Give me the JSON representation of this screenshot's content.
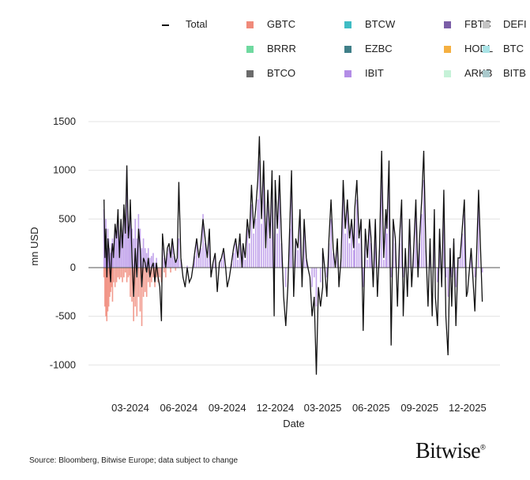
{
  "chart_data": {
    "type": "bar+line",
    "xlabel": "Date",
    "ylabel": "mn USD",
    "ylim": [
      -1150,
      1550
    ],
    "yticks": [
      1500,
      1000,
      500,
      0,
      -500,
      -1000
    ],
    "ytick_labels": [
      "1500",
      "1000",
      "500",
      "0",
      "-500",
      "-1000"
    ],
    "xticks": [
      "2024-03-01",
      "2024-06-01",
      "2024-09-01",
      "2024-12-01",
      "2025-03-01",
      "2025-06-01",
      "2025-09-01",
      "2025-12-01"
    ],
    "xtick_labels": [
      "03-2024",
      "06-2024",
      "09-2024",
      "12-2024",
      "03-2025",
      "06-2025",
      "09-2025",
      "12-2025"
    ],
    "grid": "horizontal",
    "legend_placement": "top",
    "legend": [
      {
        "name": "Total",
        "color": "#111111",
        "kind": "line"
      },
      {
        "name": "GBTC",
        "color": "#f08a7a"
      },
      {
        "name": "BTCW",
        "color": "#3fbcc4"
      },
      {
        "name": "FBTC",
        "color": "#7b5ea7"
      },
      {
        "name": "DEFI",
        "color": "#c4c4c4"
      },
      {
        "name": "BRRR",
        "color": "#6fd9a0"
      },
      {
        "name": "EZBC",
        "color": "#3f7f88"
      },
      {
        "name": "HODL",
        "color": "#f5b041"
      },
      {
        "name": "BTC",
        "color": "#a9e3e6"
      },
      {
        "name": "BTCO",
        "color": "#6b6b6b"
      },
      {
        "name": "IBIT",
        "color": "#b38de6"
      },
      {
        "name": "ARKB",
        "color": "#c6f2d8"
      },
      {
        "name": "BITB",
        "color": "#a9c9cc"
      }
    ],
    "months": [
      {
        "month": "2024-01",
        "start_day": 11,
        "total": [
          700,
          100,
          400,
          -100,
          300,
          200,
          0,
          -150,
          150,
          250,
          100
        ],
        "gbtc": [
          -100,
          -400,
          -500,
          -550,
          -450,
          -400,
          -300,
          -250,
          -200,
          -350,
          -150
        ],
        "ibit": [
          600,
          300,
          500,
          200,
          400,
          300,
          200,
          150,
          250,
          300,
          200
        ]
      },
      {
        "month": "2024-02",
        "total": [
          450,
          300,
          600,
          100,
          500,
          200,
          650,
          350,
          1050,
          300,
          500
        ],
        "gbtc": [
          -200,
          -150,
          -100,
          -120,
          -100,
          -150,
          -100,
          -50,
          -150,
          -100,
          -80
        ],
        "ibit": [
          400,
          350,
          500,
          250,
          450,
          300,
          600,
          400,
          1000,
          350,
          450
        ]
      },
      {
        "month": "2024-03",
        "total": [
          700,
          100,
          -300,
          200,
          -100,
          400,
          200,
          -200,
          100,
          50
        ],
        "gbtc": [
          -300,
          -350,
          -550,
          -400,
          -500,
          -300,
          -450,
          -600,
          -300,
          -250
        ],
        "ibit": [
          600,
          400,
          300,
          500,
          300,
          550,
          400,
          200,
          300,
          200
        ]
      },
      {
        "month": "2024-04",
        "total": [
          -50,
          100,
          -100,
          0,
          50,
          -150,
          50,
          -100,
          -200,
          -550
        ],
        "gbtc": [
          -300,
          -150,
          -200,
          -150,
          -100,
          -200,
          -100,
          -150,
          -100,
          -150
        ],
        "ibit": [
          150,
          200,
          100,
          120,
          150,
          50,
          100,
          0,
          0,
          0
        ]
      },
      {
        "month": "2024-05",
        "total": [
          350,
          150,
          0,
          200,
          250,
          100,
          300,
          150,
          50,
          100
        ],
        "gbtc": [
          0,
          -50,
          -100,
          0,
          0,
          -50,
          0,
          0,
          -30,
          0
        ],
        "ibit": [
          200,
          100,
          50,
          150,
          200,
          100,
          250,
          120,
          60,
          80
        ]
      },
      {
        "month": "2024-06",
        "total": [
          880,
          100,
          -100,
          -200,
          0,
          -150,
          -100,
          50
        ],
        "ibit": [
          300,
          80,
          0,
          0,
          20,
          0,
          0,
          40
        ]
      },
      {
        "month": "2024-07",
        "total": [
          150,
          300,
          100,
          250,
          500,
          300,
          100,
          400
        ],
        "ibit": [
          120,
          250,
          100,
          200,
          550,
          250,
          100,
          300
        ]
      },
      {
        "month": "2024-08",
        "total": [
          -100,
          50,
          150,
          -250,
          50,
          100,
          200,
          0
        ],
        "ibit": [
          0,
          40,
          120,
          0,
          50,
          80,
          150,
          20
        ]
      },
      {
        "month": "2024-09",
        "total": [
          -200,
          -100,
          50,
          200,
          300,
          100,
          350,
          0
        ],
        "ibit": [
          0,
          0,
          40,
          150,
          250,
          80,
          250,
          30
        ]
      },
      {
        "month": "2024-10",
        "total": [
          250,
          100,
          500,
          300,
          850,
          400,
          600,
          900
        ],
        "ibit": [
          200,
          80,
          400,
          250,
          650,
          350,
          500,
          700
        ]
      },
      {
        "month": "2024-11",
        "total": [
          1350,
          500,
          1100,
          200,
          800,
          300,
          1000,
          -500
        ],
        "ibit": [
          1100,
          450,
          900,
          200,
          650,
          300,
          800,
          0
        ]
      },
      {
        "month": "2024-12",
        "total": [
          900,
          400,
          950,
          300,
          -300,
          -600,
          -200,
          500
        ],
        "ibit": [
          700,
          350,
          800,
          250,
          0,
          -200,
          0,
          400
        ]
      },
      {
        "month": "2025-01",
        "total": [
          1000,
          -300,
          300,
          200,
          600,
          -200,
          500,
          100
        ],
        "ibit": [
          800,
          0,
          250,
          180,
          500,
          0,
          400,
          80
        ]
      },
      {
        "month": "2025-02",
        "total": [
          0,
          -100,
          -500,
          -300,
          -1100,
          -200,
          -400,
          -200
        ],
        "ibit": [
          20,
          0,
          -200,
          -100,
          -400,
          0,
          -150,
          0
        ]
      },
      {
        "month": "2025-03",
        "total": [
          200,
          0,
          -300,
          300,
          700,
          200,
          0,
          300
        ],
        "ibit": [
          150,
          0,
          -100,
          250,
          500,
          150,
          0,
          250
        ]
      },
      {
        "month": "2025-04",
        "total": [
          -200,
          100,
          900,
          400,
          700,
          300,
          500,
          200
        ],
        "ibit": [
          0,
          80,
          800,
          350,
          600,
          250,
          450,
          180
        ]
      },
      {
        "month": "2025-05",
        "total": [
          600,
          900,
          300,
          500,
          -650,
          400,
          100,
          500
        ],
        "ibit": [
          500,
          700,
          250,
          450,
          -200,
          350,
          80,
          400
        ]
      },
      {
        "month": "2025-06",
        "total": [
          300,
          -200,
          500,
          -300,
          200,
          1200,
          100,
          600
        ],
        "ibit": [
          250,
          0,
          450,
          0,
          180,
          900,
          80,
          500
        ]
      },
      {
        "month": "2025-07",
        "total": [
          400,
          1100,
          -800,
          500,
          300,
          -400,
          300,
          700
        ],
        "ibit": [
          350,
          900,
          -100,
          450,
          250,
          0,
          250,
          550
        ]
      },
      {
        "month": "2025-08",
        "total": [
          -500,
          200,
          -300,
          500,
          -200,
          200,
          700,
          -100
        ],
        "ibit": [
          -100,
          150,
          0,
          400,
          0,
          180,
          550,
          0
        ]
      },
      {
        "month": "2025-09",
        "total": [
          300,
          700,
          1200,
          200,
          -400,
          300,
          -500,
          600
        ],
        "ibit": [
          250,
          550,
          900,
          180,
          0,
          250,
          0,
          500
        ]
      },
      {
        "month": "2025-10",
        "total": [
          -300,
          -600,
          400,
          -200,
          800,
          -500,
          -900,
          200
        ],
        "ibit": [
          0,
          -150,
          350,
          0,
          650,
          -100,
          -300,
          180
        ]
      },
      {
        "month": "2025-11",
        "total": [
          -400,
          300,
          -600,
          100,
          100,
          400,
          700,
          -300
        ],
        "ibit": [
          -100,
          250,
          -200,
          80,
          90,
          350,
          550,
          0
        ]
      },
      {
        "month": "2025-12",
        "total": [
          -250,
          200,
          -450,
          800,
          -350
        ],
        "ibit": [
          0,
          180,
          -100,
          650,
          -50
        ]
      }
    ]
  },
  "source": "Source: Bloomberg, Bitwise Europe; data subject to change",
  "logo": "Bitwise"
}
